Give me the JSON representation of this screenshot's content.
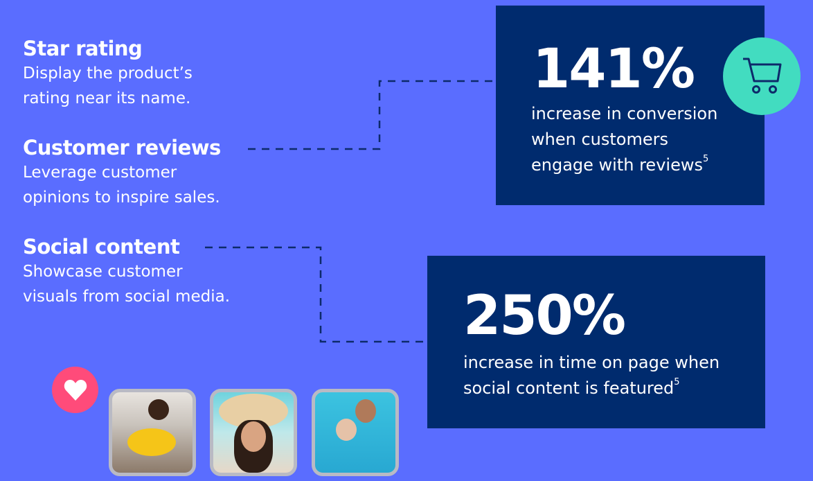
{
  "features": [
    {
      "title": "Star rating",
      "desc_lines": [
        "Display the product’s",
        "rating near its name."
      ]
    },
    {
      "title": "Customer reviews",
      "desc_lines": [
        "Leverage customer",
        "opinions to inspire sales."
      ]
    },
    {
      "title": "Social content",
      "desc_lines": [
        "Showcase customer",
        "visuals from social media."
      ]
    }
  ],
  "stats": [
    {
      "value": "141%",
      "lines": [
        "increase in conversion",
        "when customers",
        "engage with reviews"
      ],
      "footnote": "5",
      "icon": "shopping-cart-icon"
    },
    {
      "value": "250%",
      "lines": [
        "increase in time on page when",
        "social content is featured"
      ],
      "footnote": "5"
    }
  ],
  "photos": [
    "child-with-duck-float",
    "woman-in-sun-hat-selfie",
    "father-and-child-in-pool"
  ],
  "colors": {
    "background": "#5a6dff",
    "box": "#002b6e",
    "cart_circle": "#42dcc0",
    "heart_circle": "#ff4b7a",
    "frame": "#b9bac4"
  }
}
